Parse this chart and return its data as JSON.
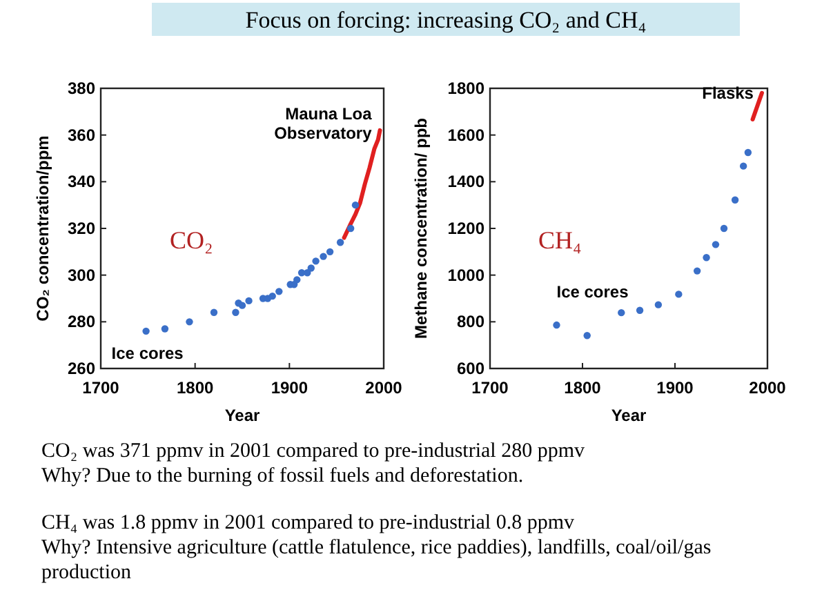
{
  "chart_data": [
    {
      "type": "other",
      "title": "Focus on forcing: increasing CO₂ and CH₄",
      "annotations": [
        "CO₂ was 371 ppmv in 2001 compared to pre-industrial 280 ppmv",
        "Why? Due to the burning of fossil fuels and deforestation.",
        "CH₄ was 1.8 ppmv in 2001 compared to pre-industrial 0.8 ppmv",
        "Why? Intensive agriculture (cattle flatulence, rice paddies), landfills, coal/oil/gas production"
      ]
    },
    {
      "type": "scatter",
      "xlabel": "Year",
      "ylabel": "CO₂ concentration/ppm",
      "xlim": [
        1700,
        2000
      ],
      "xticks": [
        1700,
        1800,
        1900,
        2000
      ],
      "ylim": [
        260,
        380
      ],
      "yticks": [
        260,
        280,
        300,
        320,
        340,
        360,
        380
      ],
      "grid": false,
      "annotations": [
        "CO₂"
      ],
      "series": [
        {
          "name": "Ice cores",
          "type": "scatter",
          "marker": "circle",
          "color": "#3a6fc8",
          "x": [
            1748,
            1768,
            1794,
            1820,
            1843,
            1846,
            1850,
            1857,
            1872,
            1877,
            1882,
            1889,
            1901,
            1905,
            1908,
            1913,
            1919,
            1923,
            1928,
            1936,
            1943,
            1954,
            1965,
            1970
          ],
          "values": [
            276,
            277,
            280,
            284,
            284,
            288,
            287,
            289,
            290,
            290,
            291,
            293,
            296,
            296,
            298,
            301,
            301,
            303,
            306,
            308,
            310,
            314,
            320,
            330
          ]
        },
        {
          "name": "Mauna Loa Observatory",
          "type": "line",
          "color": "#e02020",
          "line_style": "solid",
          "x": [
            1958,
            1965,
            1970,
            1975,
            1980,
            1985,
            1990,
            1994,
            1996
          ],
          "values": [
            316,
            322,
            326,
            331,
            339,
            346,
            354,
            358,
            362
          ]
        }
      ]
    },
    {
      "type": "scatter",
      "xlabel": "Year",
      "ylabel": "Methane concentration/ ppb",
      "xlim": [
        1700,
        2000
      ],
      "xticks": [
        1700,
        1800,
        1900,
        2000
      ],
      "ylim": [
        600,
        1800
      ],
      "yticks": [
        600,
        800,
        1000,
        1200,
        1400,
        1600,
        1800
      ],
      "grid": false,
      "annotations": [
        "CH₄"
      ],
      "series": [
        {
          "name": "Ice cores",
          "type": "scatter",
          "marker": "circle",
          "color": "#3a6fc8",
          "x": [
            1772,
            1805,
            1842,
            1862,
            1882,
            1904,
            1924,
            1934,
            1944,
            1953,
            1965,
            1974,
            1979
          ],
          "values": [
            786,
            741,
            839,
            849,
            873,
            918,
            1018,
            1075,
            1131,
            1200,
            1322,
            1467,
            1525
          ]
        },
        {
          "name": "Flasks",
          "type": "line",
          "color": "#e02020",
          "line_style": "solid",
          "x": [
            1984,
            1994
          ],
          "values": [
            1667,
            1780
          ]
        }
      ]
    }
  ]
}
